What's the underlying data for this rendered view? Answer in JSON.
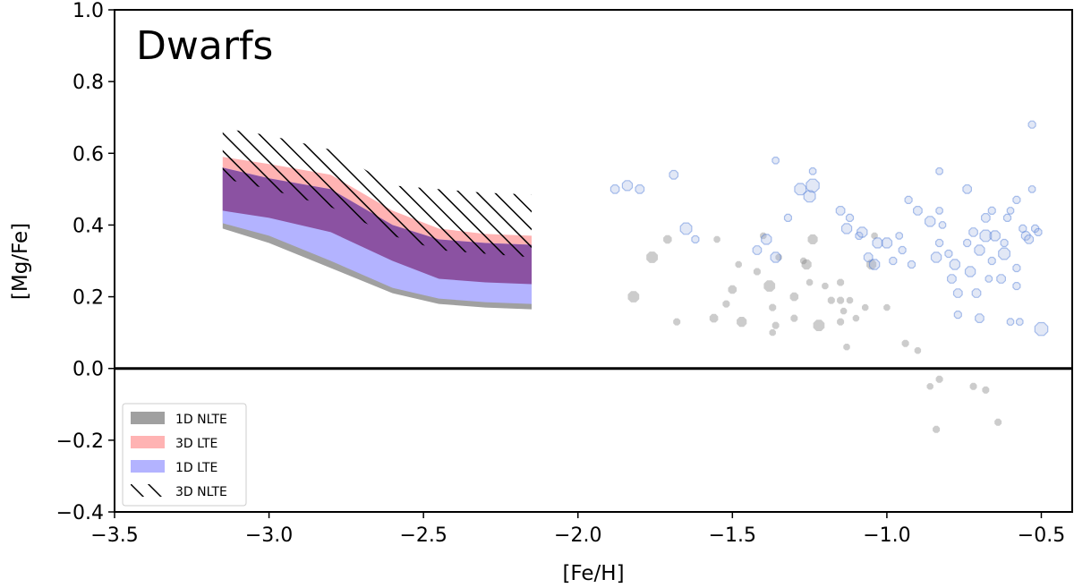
{
  "chart_data": {
    "type": "scatter",
    "title": "Dwarfs",
    "xlabel": "[Fe/H]",
    "ylabel": "[Mg/Fe]",
    "xlim": [
      -3.5,
      -0.4
    ],
    "ylim": [
      -0.4,
      1.0
    ],
    "xticks": [
      -3.5,
      -3.0,
      -2.5,
      -2.0,
      -1.5,
      -1.0,
      -0.5
    ],
    "xtick_labels": [
      "−3.5",
      "−3.0",
      "−2.5",
      "−2.0",
      "−1.5",
      "−1.0",
      "−0.5"
    ],
    "yticks": [
      -0.4,
      -0.2,
      0.0,
      0.2,
      0.4,
      0.6,
      0.8,
      1.0
    ],
    "ytick_labels": [
      "−0.4",
      "−0.2",
      "0.0",
      "0.2",
      "0.4",
      "0.6",
      "0.8",
      "1.0"
    ],
    "reference_line_y": 0.0,
    "legend_position": "lower-left",
    "band_colors": {
      "1D NLTE": "#a0a0a0",
      "3D LTE": "#ffb3b3",
      "1D LTE": "#b3b3ff",
      "overlap": "#8b52a2",
      "3D NLTE": "#000000"
    },
    "bands": [
      {
        "name": "1D NLTE",
        "x": [
          -3.15,
          -3.0,
          -2.8,
          -2.6,
          -2.45,
          -2.3,
          -2.15
        ],
        "lower": [
          0.39,
          0.35,
          0.28,
          0.21,
          0.18,
          0.17,
          0.165
        ],
        "upper": [
          0.54,
          0.51,
          0.48,
          0.38,
          0.35,
          0.34,
          0.33
        ]
      },
      {
        "name": "3D LTE",
        "x": [
          -3.15,
          -3.0,
          -2.8,
          -2.6,
          -2.45,
          -2.3,
          -2.15
        ],
        "lower": [
          0.44,
          0.42,
          0.38,
          0.3,
          0.25,
          0.24,
          0.235
        ],
        "upper": [
          0.59,
          0.57,
          0.54,
          0.44,
          0.39,
          0.375,
          0.37
        ]
      },
      {
        "name": "1D LTE",
        "x": [
          -3.15,
          -3.0,
          -2.8,
          -2.6,
          -2.45,
          -2.3,
          -2.15
        ],
        "lower": [
          0.405,
          0.37,
          0.3,
          0.225,
          0.195,
          0.185,
          0.18
        ],
        "upper": [
          0.56,
          0.53,
          0.5,
          0.4,
          0.36,
          0.35,
          0.345
        ]
      },
      {
        "name": "3D NLTE",
        "x": [
          -3.15,
          -3.0,
          -2.8,
          -2.6,
          -2.45,
          -2.3,
          -2.15
        ],
        "lower": [
          0.53,
          0.5,
          0.45,
          0.37,
          0.33,
          0.32,
          0.31
        ],
        "upper": [
          0.67,
          0.65,
          0.61,
          0.51,
          0.5,
          0.49,
          0.485
        ]
      }
    ],
    "series": [
      {
        "name": "gray stars",
        "color": "#7f7f7f",
        "opacity": 0.4,
        "points": [
          {
            "x": -1.55,
            "y": 0.36,
            "s": 0.022
          },
          {
            "x": -1.71,
            "y": 0.36,
            "s": 0.03
          },
          {
            "x": -1.76,
            "y": 0.31,
            "s": 0.04
          },
          {
            "x": -1.82,
            "y": 0.2,
            "s": 0.04
          },
          {
            "x": -1.68,
            "y": 0.13,
            "s": 0.025
          },
          {
            "x": -1.48,
            "y": 0.29,
            "s": 0.022
          },
          {
            "x": -1.5,
            "y": 0.22,
            "s": 0.03
          },
          {
            "x": -1.52,
            "y": 0.18,
            "s": 0.025
          },
          {
            "x": -1.56,
            "y": 0.14,
            "s": 0.03
          },
          {
            "x": -1.47,
            "y": 0.13,
            "s": 0.035
          },
          {
            "x": -1.4,
            "y": 0.37,
            "s": 0.02
          },
          {
            "x": -1.42,
            "y": 0.27,
            "s": 0.025
          },
          {
            "x": -1.38,
            "y": 0.23,
            "s": 0.04
          },
          {
            "x": -1.37,
            "y": 0.17,
            "s": 0.025
          },
          {
            "x": -1.36,
            "y": 0.12,
            "s": 0.025
          },
          {
            "x": -1.37,
            "y": 0.1,
            "s": 0.02
          },
          {
            "x": -1.35,
            "y": 0.31,
            "s": 0.02
          },
          {
            "x": -1.3,
            "y": 0.2,
            "s": 0.03
          },
          {
            "x": -1.3,
            "y": 0.14,
            "s": 0.025
          },
          {
            "x": -1.27,
            "y": 0.3,
            "s": 0.02
          },
          {
            "x": -1.26,
            "y": 0.29,
            "s": 0.035
          },
          {
            "x": -1.25,
            "y": 0.24,
            "s": 0.02
          },
          {
            "x": -1.24,
            "y": 0.36,
            "s": 0.035
          },
          {
            "x": -1.22,
            "y": 0.12,
            "s": 0.04
          },
          {
            "x": -1.2,
            "y": 0.23,
            "s": 0.02
          },
          {
            "x": -1.18,
            "y": 0.19,
            "s": 0.025
          },
          {
            "x": -1.15,
            "y": 0.24,
            "s": 0.025
          },
          {
            "x": -1.15,
            "y": 0.19,
            "s": 0.025
          },
          {
            "x": -1.15,
            "y": 0.13,
            "s": 0.025
          },
          {
            "x": -1.14,
            "y": 0.16,
            "s": 0.02
          },
          {
            "x": -1.13,
            "y": 0.06,
            "s": 0.018
          },
          {
            "x": -1.12,
            "y": 0.19,
            "s": 0.02
          },
          {
            "x": -1.1,
            "y": 0.14,
            "s": 0.02
          },
          {
            "x": -1.07,
            "y": 0.17,
            "s": 0.02
          },
          {
            "x": -1.05,
            "y": 0.29,
            "s": 0.035
          },
          {
            "x": -1.04,
            "y": 0.37,
            "s": 0.018
          },
          {
            "x": -1.0,
            "y": 0.17,
            "s": 0.02
          },
          {
            "x": -0.94,
            "y": 0.07,
            "s": 0.025
          },
          {
            "x": -0.9,
            "y": 0.05,
            "s": 0.02
          },
          {
            "x": -0.86,
            "y": -0.05,
            "s": 0.02
          },
          {
            "x": -0.83,
            "y": -0.03,
            "s": 0.025
          },
          {
            "x": -0.84,
            "y": -0.17,
            "s": 0.025
          },
          {
            "x": -0.72,
            "y": -0.05,
            "s": 0.025
          },
          {
            "x": -0.68,
            "y": -0.06,
            "s": 0.025
          },
          {
            "x": -0.64,
            "y": -0.15,
            "s": 0.025
          }
        ]
      },
      {
        "name": "blue stars",
        "color": "#9fb4e0",
        "opacity": 0.3,
        "points": [
          {
            "x": -1.88,
            "y": 0.5,
            "s": 0.03
          },
          {
            "x": -1.84,
            "y": 0.51,
            "s": 0.035
          },
          {
            "x": -1.8,
            "y": 0.5,
            "s": 0.03
          },
          {
            "x": -1.69,
            "y": 0.54,
            "s": 0.03
          },
          {
            "x": -1.62,
            "y": 0.36,
            "s": 0.025
          },
          {
            "x": -1.65,
            "y": 0.39,
            "s": 0.04
          },
          {
            "x": -1.36,
            "y": 0.58,
            "s": 0.02
          },
          {
            "x": -1.39,
            "y": 0.36,
            "s": 0.035
          },
          {
            "x": -1.42,
            "y": 0.33,
            "s": 0.03
          },
          {
            "x": -1.36,
            "y": 0.31,
            "s": 0.035
          },
          {
            "x": -1.32,
            "y": 0.42,
            "s": 0.025
          },
          {
            "x": -1.28,
            "y": 0.5,
            "s": 0.04
          },
          {
            "x": -1.25,
            "y": 0.48,
            "s": 0.04
          },
          {
            "x": -1.24,
            "y": 0.51,
            "s": 0.045
          },
          {
            "x": -1.24,
            "y": 0.55,
            "s": 0.015
          },
          {
            "x": -1.15,
            "y": 0.44,
            "s": 0.03
          },
          {
            "x": -1.13,
            "y": 0.39,
            "s": 0.035
          },
          {
            "x": -1.12,
            "y": 0.42,
            "s": 0.025
          },
          {
            "x": -1.09,
            "y": 0.37,
            "s": 0.025
          },
          {
            "x": -1.08,
            "y": 0.38,
            "s": 0.035
          },
          {
            "x": -1.03,
            "y": 0.35,
            "s": 0.035
          },
          {
            "x": -1.0,
            "y": 0.35,
            "s": 0.035
          },
          {
            "x": -1.06,
            "y": 0.31,
            "s": 0.03
          },
          {
            "x": -1.04,
            "y": 0.29,
            "s": 0.035
          },
          {
            "x": -0.96,
            "y": 0.37,
            "s": 0.02
          },
          {
            "x": -0.95,
            "y": 0.33,
            "s": 0.025
          },
          {
            "x": -0.98,
            "y": 0.3,
            "s": 0.025
          },
          {
            "x": -0.92,
            "y": 0.29,
            "s": 0.025
          },
          {
            "x": -0.93,
            "y": 0.47,
            "s": 0.025
          },
          {
            "x": -0.9,
            "y": 0.44,
            "s": 0.03
          },
          {
            "x": -0.86,
            "y": 0.41,
            "s": 0.035
          },
          {
            "x": -0.84,
            "y": 0.31,
            "s": 0.035
          },
          {
            "x": -0.83,
            "y": 0.44,
            "s": 0.02
          },
          {
            "x": -0.83,
            "y": 0.35,
            "s": 0.025
          },
          {
            "x": -0.82,
            "y": 0.4,
            "s": 0.02
          },
          {
            "x": -0.8,
            "y": 0.32,
            "s": 0.025
          },
          {
            "x": -0.79,
            "y": 0.25,
            "s": 0.03
          },
          {
            "x": -0.78,
            "y": 0.29,
            "s": 0.035
          },
          {
            "x": -0.77,
            "y": 0.21,
            "s": 0.03
          },
          {
            "x": -0.77,
            "y": 0.15,
            "s": 0.025
          },
          {
            "x": -0.74,
            "y": 0.35,
            "s": 0.025
          },
          {
            "x": -0.74,
            "y": 0.5,
            "s": 0.03
          },
          {
            "x": -0.73,
            "y": 0.27,
            "s": 0.035
          },
          {
            "x": -0.72,
            "y": 0.38,
            "s": 0.03
          },
          {
            "x": -0.71,
            "y": 0.21,
            "s": 0.03
          },
          {
            "x": -0.7,
            "y": 0.33,
            "s": 0.035
          },
          {
            "x": -0.7,
            "y": 0.14,
            "s": 0.03
          },
          {
            "x": -0.68,
            "y": 0.37,
            "s": 0.04
          },
          {
            "x": -0.68,
            "y": 0.42,
            "s": 0.03
          },
          {
            "x": -0.67,
            "y": 0.25,
            "s": 0.02
          },
          {
            "x": -0.66,
            "y": 0.3,
            "s": 0.025
          },
          {
            "x": -0.66,
            "y": 0.44,
            "s": 0.025
          },
          {
            "x": -0.65,
            "y": 0.37,
            "s": 0.035
          },
          {
            "x": -0.62,
            "y": 0.35,
            "s": 0.025
          },
          {
            "x": -0.62,
            "y": 0.32,
            "s": 0.04
          },
          {
            "x": -0.61,
            "y": 0.42,
            "s": 0.025
          },
          {
            "x": -0.6,
            "y": 0.44,
            "s": 0.02
          },
          {
            "x": -0.58,
            "y": 0.28,
            "s": 0.025
          },
          {
            "x": -0.58,
            "y": 0.23,
            "s": 0.025
          },
          {
            "x": -0.6,
            "y": 0.13,
            "s": 0.02
          },
          {
            "x": -0.57,
            "y": 0.13,
            "s": 0.02
          },
          {
            "x": -0.56,
            "y": 0.39,
            "s": 0.025
          },
          {
            "x": -0.55,
            "y": 0.37,
            "s": 0.03
          },
          {
            "x": -0.54,
            "y": 0.36,
            "s": 0.03
          },
          {
            "x": -0.53,
            "y": 0.5,
            "s": 0.02
          },
          {
            "x": -0.52,
            "y": 0.39,
            "s": 0.025
          },
          {
            "x": -0.51,
            "y": 0.38,
            "s": 0.025
          },
          {
            "x": -0.53,
            "y": 0.68,
            "s": 0.025
          },
          {
            "x": -0.5,
            "y": 0.11,
            "s": 0.045
          },
          {
            "x": -0.58,
            "y": 0.47,
            "s": 0.025
          },
          {
            "x": -0.63,
            "y": 0.25,
            "s": 0.03
          },
          {
            "x": -0.83,
            "y": 0.55,
            "s": 0.012
          }
        ]
      }
    ],
    "legend": [
      {
        "label": "1D NLTE",
        "style": "fill",
        "color": "#a0a0a0"
      },
      {
        "label": "3D LTE",
        "style": "fill",
        "color": "#ffb3b3"
      },
      {
        "label": "1D LTE",
        "style": "fill",
        "color": "#b3b3ff"
      },
      {
        "label": "3D NLTE",
        "style": "hatch",
        "color": "#000000"
      }
    ]
  }
}
